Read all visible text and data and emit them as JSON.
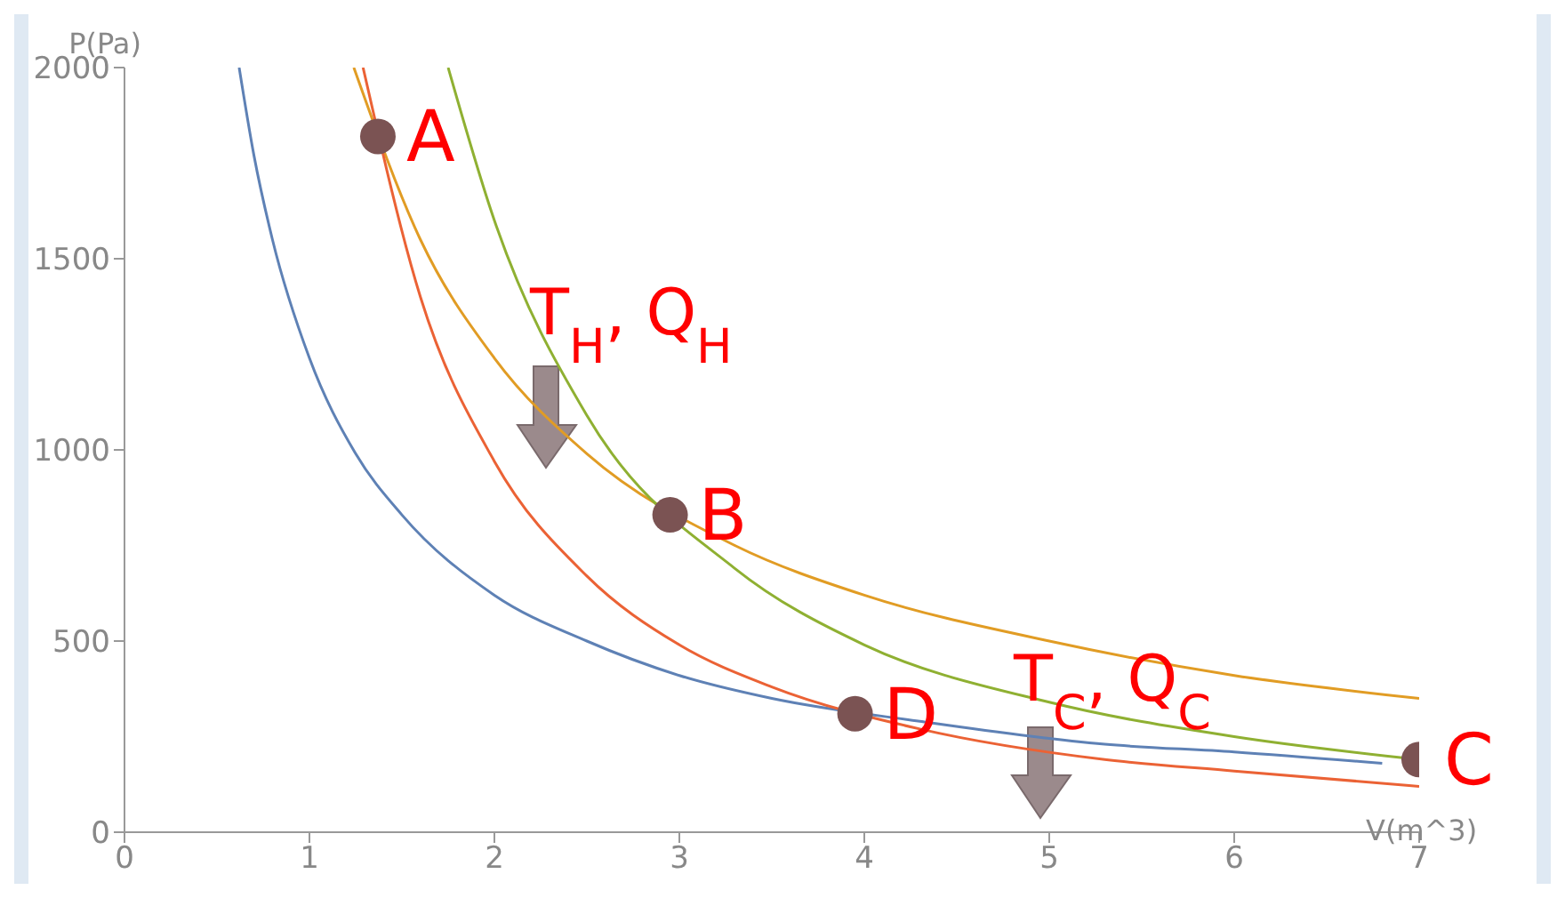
{
  "chart_data": {
    "type": "line",
    "xlabel": "V(m^3)",
    "ylabel": "P(Pa)",
    "xlim": [
      0,
      7
    ],
    "xticks": [
      0,
      1,
      2,
      3,
      4,
      5,
      6,
      7
    ],
    "ylim": [
      0,
      2000
    ],
    "yticks": [
      0,
      500,
      1000,
      1500,
      2000
    ],
    "grid": false,
    "line_style": "solid",
    "series": [
      {
        "color": "#5e81b5",
        "x": [
          0.62,
          0.7,
          0.8,
          1,
          1.25,
          1.5,
          2,
          2.5,
          3,
          3.5,
          4.3,
          5.3,
          6,
          6.8
        ],
        "values": [
          2000,
          1770,
          1550,
          1240,
          990,
          830,
          620,
          500,
          410,
          350,
          290,
          230,
          210,
          180
        ]
      },
      {
        "color": "#e19c24",
        "x": [
          1.24,
          1.6,
          2,
          2.5,
          3.3,
          4,
          5,
          6,
          7
        ],
        "values": [
          2000,
          1550,
          1240,
          990,
          750,
          620,
          500,
          410,
          350
        ]
      },
      {
        "color": "#8fb032",
        "x": [
          1.75,
          2,
          2.5,
          3.3,
          4,
          5,
          6,
          7
        ],
        "values": [
          2000,
          1600,
          1090,
          690,
          490,
          340,
          250,
          190
        ]
      },
      {
        "color": "#eb6235",
        "x": [
          1.29,
          1.6,
          2,
          2.5,
          3,
          3.5,
          4.3,
          5.3,
          6,
          7
        ],
        "values": [
          2000,
          1400,
          970,
          670,
          490,
          380,
          270,
          190,
          160,
          120
        ]
      },
      {
        "type": "scatter",
        "color": "#7b5353",
        "x": [
          1.37,
          2.95,
          7,
          3.95
        ],
        "values": [
          1820,
          830,
          190,
          310
        ]
      }
    ],
    "annotations": [
      {
        "text": "A",
        "x": 1.37,
        "y": 1820
      },
      {
        "text": "B",
        "x": 2.95,
        "y": 830
      },
      {
        "text": "C",
        "x": 7,
        "y": 190
      },
      {
        "text": "D",
        "x": 3.95,
        "y": 310
      },
      "T$_{H}$, Q$_{H}$",
      "T$_{C}$, Q$_{C}$"
    ]
  }
}
